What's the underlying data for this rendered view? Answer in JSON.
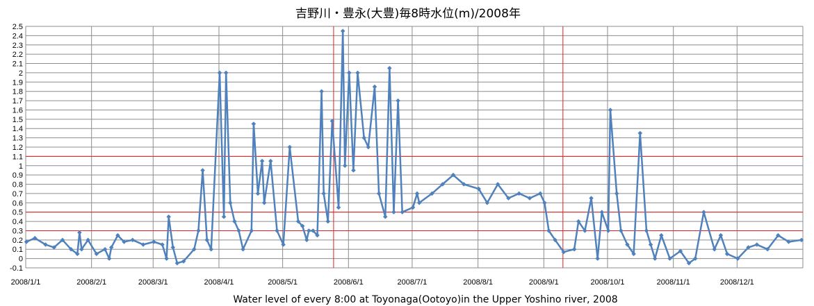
{
  "chart_data": {
    "type": "line",
    "title": "吉野川・豊永(大豊)毎8時水位(m)/2008年",
    "xlabel": "Water level of every 8:00 at Toyonaga(Ootoyo)in the Upper Yoshino river, 2008",
    "ylabel": "",
    "ylim": [
      -0.1,
      2.5
    ],
    "y_ticks": [
      "-0.1",
      "0",
      "0.1",
      "0.2",
      "0.3",
      "0.4",
      "0.5",
      "0.6",
      "0.7",
      "0.8",
      "0.9",
      "1",
      "1.1",
      "1.2",
      "1.3",
      "1.4",
      "1.5",
      "1.6",
      "1.7",
      "1.8",
      "1.9",
      "2",
      "2.1",
      "2.2",
      "2.3",
      "2.4",
      "2.5"
    ],
    "x_tick_labels": [
      "2008/1/1",
      "2008/2/1",
      "2008/3/1",
      "2008/4/1",
      "2008/5/1",
      "2008/6/1",
      "2008/7/1",
      "2008/8/1",
      "2008/9/1",
      "2008/10/1",
      "2008/11/1",
      "2008/12/1"
    ],
    "x_range": [
      "2008/1/1",
      "2008/12/31"
    ],
    "grid": true,
    "reference_lines_y": [
      0.3,
      0.5,
      1.1
    ],
    "reference_lines_x": [
      "2008/5/25",
      "2008/9/10"
    ],
    "series_color": "#4F81BD",
    "reference_color": "#E02020",
    "x": [
      "2008/1/1",
      "2008/1/5",
      "2008/1/10",
      "2008/1/14",
      "2008/1/18",
      "2008/1/22",
      "2008/1/25",
      "2008/1/26",
      "2008/1/27",
      "2008/1/30",
      "2008/2/3",
      "2008/2/7",
      "2008/2/9",
      "2008/2/10",
      "2008/2/13",
      "2008/2/16",
      "2008/2/20",
      "2008/2/25",
      "2008/3/1",
      "2008/3/5",
      "2008/3/7",
      "2008/3/8",
      "2008/3/10",
      "2008/3/12",
      "2008/3/15",
      "2008/3/20",
      "2008/3/22",
      "2008/3/24",
      "2008/3/26",
      "2008/3/28",
      "2008/4/1",
      "2008/4/3",
      "2008/4/4",
      "2008/4/6",
      "2008/4/8",
      "2008/4/10",
      "2008/4/12",
      "2008/4/16",
      "2008/4/17",
      "2008/4/19",
      "2008/4/21",
      "2008/4/22",
      "2008/4/25",
      "2008/4/28",
      "2008/5/1",
      "2008/5/4",
      "2008/5/8",
      "2008/5/10",
      "2008/5/12",
      "2008/5/13",
      "2008/5/15",
      "2008/5/17",
      "2008/5/19",
      "2008/5/20",
      "2008/5/22",
      "2008/5/24",
      "2008/5/27",
      "2008/5/29",
      "2008/5/30",
      "2008/6/1",
      "2008/6/3",
      "2008/6/5",
      "2008/6/8",
      "2008/6/10",
      "2008/6/13",
      "2008/6/15",
      "2008/6/18",
      "2008/6/20",
      "2008/6/22",
      "2008/6/24",
      "2008/6/26",
      "2008/7/1",
      "2008/7/3",
      "2008/7/4",
      "2008/7/10",
      "2008/7/15",
      "2008/7/20",
      "2008/7/25",
      "2008/8/1",
      "2008/8/5",
      "2008/8/10",
      "2008/8/15",
      "2008/8/20",
      "2008/8/25",
      "2008/8/30",
      "2008/9/1",
      "2008/9/3",
      "2008/9/6",
      "2008/9/10",
      "2008/9/15",
      "2008/9/17",
      "2008/9/20",
      "2008/9/23",
      "2008/9/26",
      "2008/9/28",
      "2008/10/1",
      "2008/10/2",
      "2008/10/5",
      "2008/10/7",
      "2008/10/10",
      "2008/10/13",
      "2008/10/16",
      "2008/10/19",
      "2008/10/21",
      "2008/10/23",
      "2008/10/26",
      "2008/10/30",
      "2008/11/4",
      "2008/11/8",
      "2008/11/11",
      "2008/11/15",
      "2008/11/20",
      "2008/11/23",
      "2008/11/26",
      "2008/12/1",
      "2008/12/6",
      "2008/12/10",
      "2008/12/15",
      "2008/12/20",
      "2008/12/25",
      "2008/12/31"
    ],
    "series": [
      {
        "values": [
          0.18,
          0.22,
          0.15,
          0.12,
          0.2,
          0.1,
          0.05,
          0.28,
          0.1,
          0.2,
          0.05,
          0.1,
          0.0,
          0.12,
          0.25,
          0.18,
          0.2,
          0.15,
          0.18,
          0.15,
          0.0,
          0.45,
          0.12,
          -0.05,
          -0.03,
          0.1,
          0.3,
          0.95,
          0.2,
          0.1,
          2.0,
          0.45,
          2.0,
          0.6,
          0.4,
          0.3,
          0.1,
          0.3,
          1.45,
          0.7,
          1.05,
          0.6,
          1.05,
          0.3,
          0.15,
          1.2,
          0.4,
          0.35,
          0.2,
          0.3,
          0.3,
          0.25,
          1.8,
          0.7,
          0.4,
          1.48,
          0.55,
          2.45,
          1.0,
          2.0,
          0.95,
          2.0,
          1.3,
          1.2,
          1.85,
          0.7,
          0.45,
          2.05,
          0.5,
          1.7,
          0.5,
          0.55,
          0.7,
          0.6,
          0.7,
          0.8,
          0.9,
          0.8,
          0.75,
          0.6,
          0.8,
          0.65,
          0.7,
          0.65,
          0.7,
          0.6,
          0.3,
          0.2,
          0.07,
          0.1,
          0.4,
          0.3,
          0.65,
          0.0,
          0.5,
          0.3,
          1.6,
          0.7,
          0.3,
          0.15,
          0.05,
          1.35,
          0.3,
          0.15,
          0.0,
          0.25,
          0.0,
          0.08,
          -0.05,
          0.0,
          0.5,
          0.1,
          0.25,
          0.05,
          0.0,
          0.12,
          0.15,
          0.1,
          0.25,
          0.18,
          0.2
        ]
      }
    ]
  }
}
